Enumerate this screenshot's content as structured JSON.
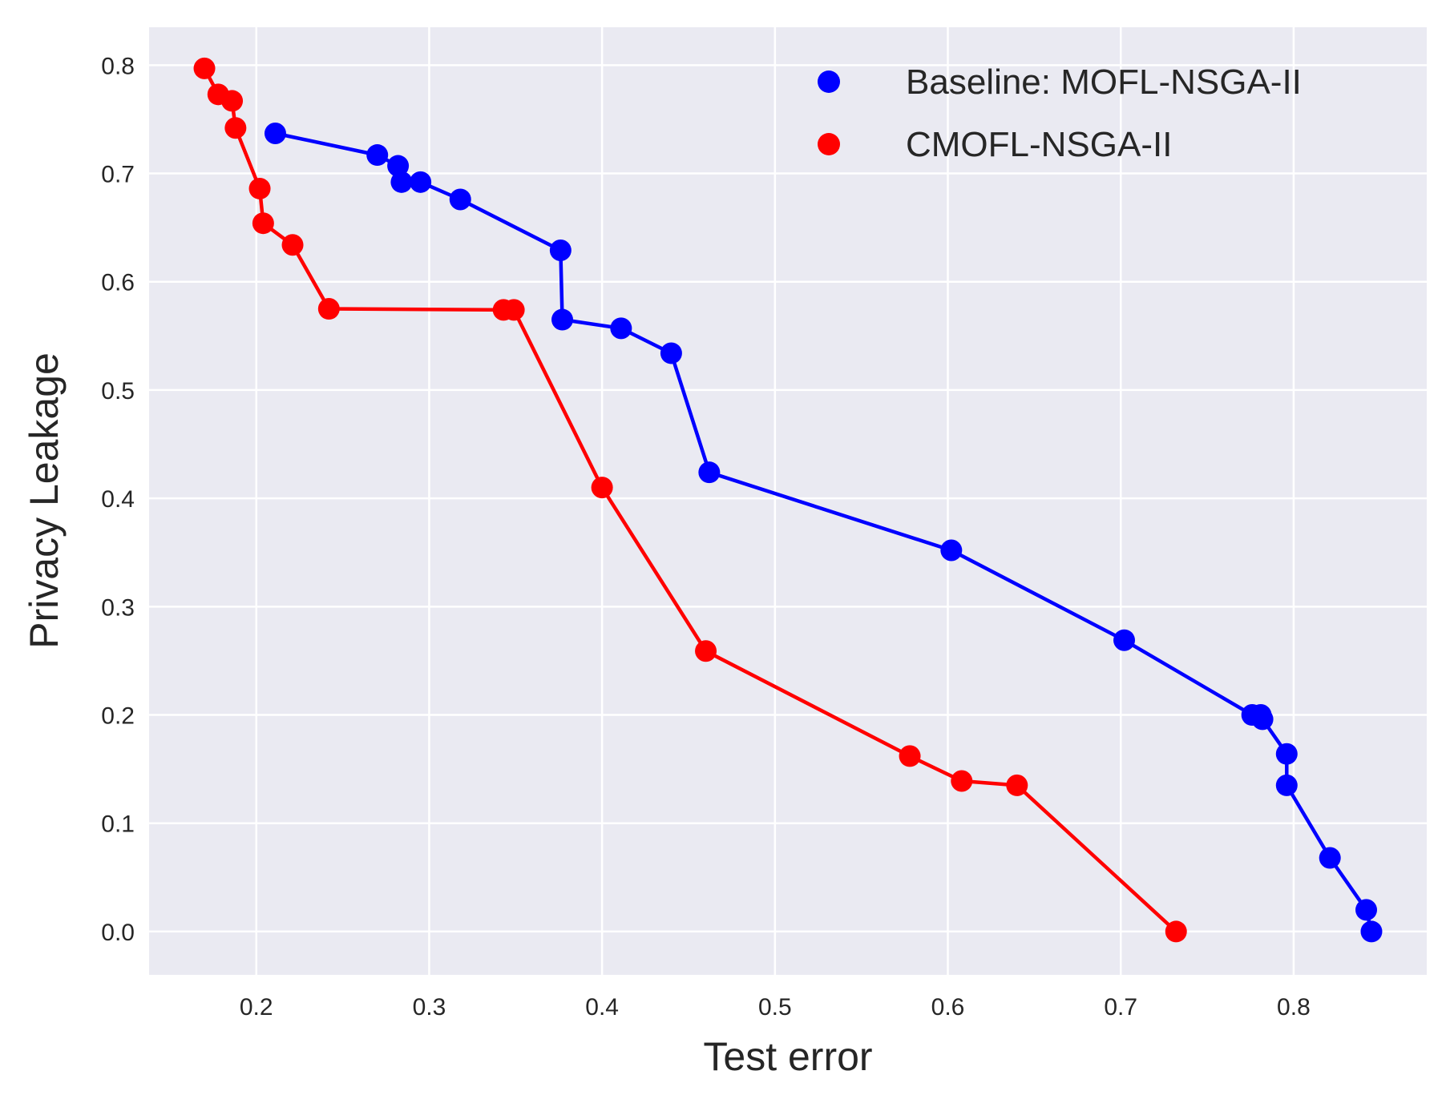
{
  "chart_data": {
    "type": "line",
    "xlabel": "Test error",
    "ylabel": "Privacy Leakage",
    "xlim": [
      0.138,
      0.877
    ],
    "ylim": [
      -0.04,
      0.835
    ],
    "xticks": [
      0.2,
      0.3,
      0.4,
      0.5,
      0.6,
      0.7,
      0.8
    ],
    "yticks": [
      0.0,
      0.1,
      0.2,
      0.3,
      0.4,
      0.5,
      0.6,
      0.7,
      0.8
    ],
    "grid": true,
    "legend_position": "top-right",
    "series": [
      {
        "name": "Baseline: MOFL-NSGA-II",
        "color": "#0000ff",
        "x": [
          0.211,
          0.27,
          0.282,
          0.284,
          0.295,
          0.318,
          0.376,
          0.377,
          0.411,
          0.44,
          0.462,
          0.602,
          0.702,
          0.776,
          0.781,
          0.782,
          0.796,
          0.796,
          0.821,
          0.842,
          0.845
        ],
        "y": [
          0.737,
          0.717,
          0.707,
          0.692,
          0.692,
          0.676,
          0.629,
          0.565,
          0.557,
          0.534,
          0.424,
          0.352,
          0.269,
          0.2,
          0.2,
          0.196,
          0.164,
          0.135,
          0.068,
          0.02,
          0.0
        ]
      },
      {
        "name": "CMOFL-NSGA-II",
        "color": "#ff0000",
        "x": [
          0.17,
          0.178,
          0.186,
          0.188,
          0.202,
          0.204,
          0.221,
          0.242,
          0.343,
          0.349,
          0.4,
          0.46,
          0.578,
          0.608,
          0.64,
          0.732
        ],
        "y": [
          0.797,
          0.773,
          0.767,
          0.742,
          0.686,
          0.654,
          0.634,
          0.575,
          0.574,
          0.574,
          0.41,
          0.259,
          0.162,
          0.139,
          0.135,
          0.0
        ]
      }
    ]
  }
}
